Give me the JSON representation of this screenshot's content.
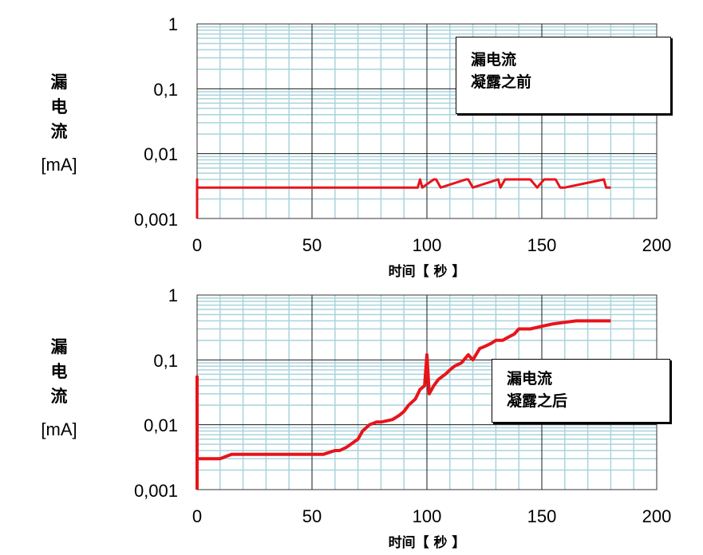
{
  "chart_data": [
    {
      "type": "line",
      "title": "漏电流 凝露之前",
      "legend": [
        "漏电流",
        "凝露之前"
      ],
      "xlabel": "时间【 秒 】",
      "ylabel": "漏电流 [mA]",
      "yscale": "log",
      "xlim": [
        0,
        200
      ],
      "ylim": [
        0.001,
        1
      ],
      "xticks": [
        "0",
        "50",
        "100",
        "150",
        "200"
      ],
      "yticks": [
        "1",
        "0,1",
        "0,01",
        "0,001"
      ],
      "grid": true,
      "legend_position": "upper right",
      "series": [
        {
          "name": "漏电流 凝露之前",
          "color": "#e8141b",
          "x": [
            0,
            0,
            0,
            20,
            50,
            96,
            97,
            98,
            103,
            104,
            106,
            117,
            118,
            120,
            131,
            132,
            134,
            138,
            145,
            148,
            151,
            156,
            158,
            160,
            177,
            178,
            180
          ],
          "y": [
            0.001,
            0.004,
            0.003,
            0.003,
            0.003,
            0.003,
            0.004,
            0.003,
            0.004,
            0.004,
            0.003,
            0.004,
            0.004,
            0.003,
            0.004,
            0.003,
            0.004,
            0.004,
            0.004,
            0.003,
            0.004,
            0.004,
            0.003,
            0.003,
            0.004,
            0.003,
            0.003
          ]
        }
      ]
    },
    {
      "type": "line",
      "title": "漏电流 凝露之后",
      "legend": [
        "漏电流",
        "凝露之后"
      ],
      "xlabel": "时间【 秒 】",
      "ylabel": "漏电流 [mA]",
      "yscale": "log",
      "xlim": [
        0,
        200
      ],
      "ylim": [
        0.001,
        1
      ],
      "xticks": [
        "0",
        "50",
        "100",
        "150",
        "200"
      ],
      "yticks": [
        "1",
        "0,1",
        "0,01",
        "0,001"
      ],
      "grid": true,
      "legend_position": "center right",
      "series": [
        {
          "name": "漏电流 凝露之后",
          "color": "#e8141b",
          "x": [
            0,
            0,
            0,
            10,
            15,
            20,
            30,
            40,
            50,
            55,
            60,
            62,
            65,
            70,
            72,
            75,
            78,
            80,
            85,
            88,
            90,
            92,
            95,
            97,
            99,
            100,
            101,
            103,
            105,
            108,
            110,
            112,
            115,
            118,
            120,
            123,
            125,
            128,
            130,
            133,
            135,
            138,
            140,
            145,
            150,
            155,
            160,
            165,
            170,
            175,
            180
          ],
          "y": [
            0.001,
            0.055,
            0.003,
            0.003,
            0.0035,
            0.0035,
            0.0035,
            0.0035,
            0.0035,
            0.0035,
            0.004,
            0.004,
            0.0045,
            0.006,
            0.008,
            0.01,
            0.011,
            0.011,
            0.012,
            0.014,
            0.016,
            0.02,
            0.025,
            0.035,
            0.04,
            0.12,
            0.03,
            0.04,
            0.05,
            0.06,
            0.07,
            0.08,
            0.09,
            0.12,
            0.1,
            0.15,
            0.16,
            0.18,
            0.2,
            0.2,
            0.22,
            0.25,
            0.3,
            0.3,
            0.33,
            0.36,
            0.38,
            0.4,
            0.4,
            0.4,
            0.4
          ]
        }
      ]
    }
  ],
  "charts": [
    {
      "ylabel_chars": [
        "漏",
        "电",
        "流"
      ],
      "ylabel_unit": "[mA]",
      "yticks": [
        "1",
        "0,1",
        "0,01",
        "0,001"
      ],
      "xticks": [
        "0",
        "50",
        "100",
        "150",
        "200"
      ],
      "xlabel": "时间【 秒 】",
      "legend_line1": "漏电流",
      "legend_line2": "凝露之前"
    },
    {
      "ylabel_chars": [
        "漏",
        "电",
        "流"
      ],
      "ylabel_unit": "[mA]",
      "yticks": [
        "1",
        "0,1",
        "0,01",
        "0,001"
      ],
      "xticks": [
        "0",
        "50",
        "100",
        "150",
        "200"
      ],
      "xlabel": "时间【 秒 】",
      "legend_line1": "漏电流",
      "legend_line2": "凝露之后"
    }
  ],
  "colors": {
    "series": "#e8141b",
    "major_grid": "#1a1a1a",
    "minor_grid": "#a9d3dc"
  }
}
